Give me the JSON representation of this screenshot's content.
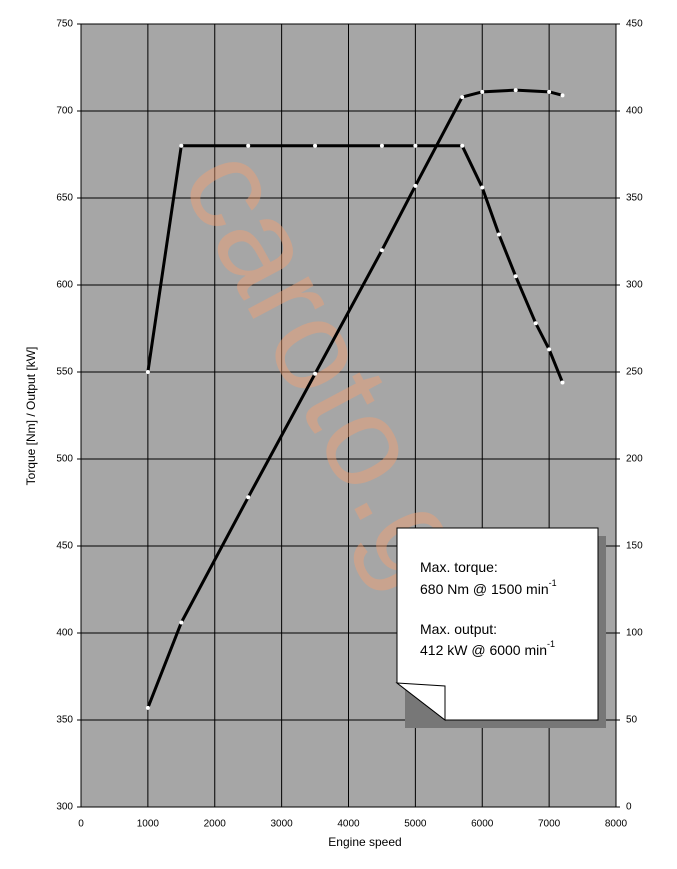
{
  "chart_data": {
    "type": "line",
    "xlabel": "Engine speed",
    "ylabel": "Torque [Nm] / Output [kW]",
    "xlim": [
      0,
      8000
    ],
    "xticks": [
      0,
      1000,
      2000,
      3000,
      4000,
      5000,
      6000,
      7000,
      8000
    ],
    "ylim": [
      300,
      750
    ],
    "yticks": [
      300,
      350,
      400,
      450,
      500,
      550,
      600,
      650,
      700,
      750
    ],
    "y2lim": [
      0,
      450
    ],
    "y2ticks": [
      0,
      50,
      100,
      150,
      200,
      250,
      300,
      350,
      400,
      450
    ],
    "grid": true,
    "background": "#a6a6a6",
    "watermark": "caroto.gr",
    "series": [
      {
        "color": "#000000",
        "x": [
          1000,
          1500,
          2500,
          3500,
          4500,
          5000,
          5700,
          6000,
          6250,
          6500,
          6800,
          7000,
          7200
        ],
        "values": [
          550,
          680,
          680,
          680,
          680,
          680,
          680,
          656,
          629,
          605,
          578,
          563,
          544
        ]
      },
      {
        "color": "#000000",
        "axis": "y2",
        "x": [
          1000,
          1500,
          2500,
          3500,
          4500,
          5000,
          5700,
          6000,
          6500,
          7000,
          7200
        ],
        "values": [
          57,
          106,
          178,
          249,
          320,
          357,
          408,
          411,
          412,
          411,
          409
        ]
      }
    ],
    "annotation": [
      {
        "text": "Max. torque:"
      },
      {
        "text": "680 Nm @ 1500 min",
        "sup": "-1"
      },
      {
        "text": "Max. output:"
      },
      {
        "text": "412 kW @ 6000 min",
        "sup": "-1"
      }
    ]
  }
}
